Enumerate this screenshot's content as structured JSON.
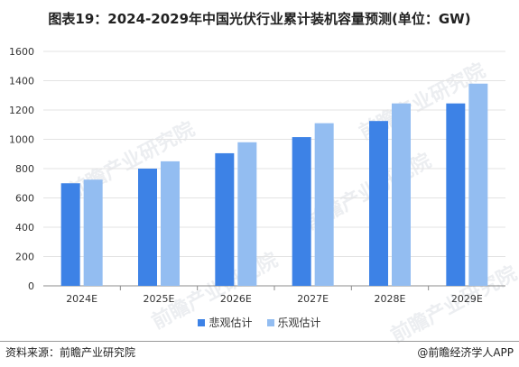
{
  "title": "图表19：2024-2029年中国光伏行业累计装机容量预测(单位：GW)",
  "watermark": "前瞻产业研究院",
  "footer": {
    "source": "资料来源：前瞻产业研究院",
    "brand": "@前瞻经济学人APP"
  },
  "colors": {
    "pessimistic": "#3d82e6",
    "optimistic": "#93bdf1",
    "grid": "#e3e3e3",
    "axis": "#8c8c8c"
  },
  "chart_data": {
    "type": "bar",
    "categories": [
      "2024E",
      "2025E",
      "2026E",
      "2027E",
      "2028E",
      "2029E"
    ],
    "series": [
      {
        "name": "悲观估计",
        "values": [
          700,
          800,
          905,
          1015,
          1125,
          1245
        ]
      },
      {
        "name": "乐观估计",
        "values": [
          725,
          850,
          980,
          1110,
          1245,
          1380
        ]
      }
    ],
    "yticks": [
      "0",
      "200",
      "400",
      "600",
      "800",
      "1000",
      "1200",
      "1400",
      "1600"
    ],
    "ylim": [
      0,
      1600
    ],
    "grid": true,
    "legend": "bottom"
  }
}
